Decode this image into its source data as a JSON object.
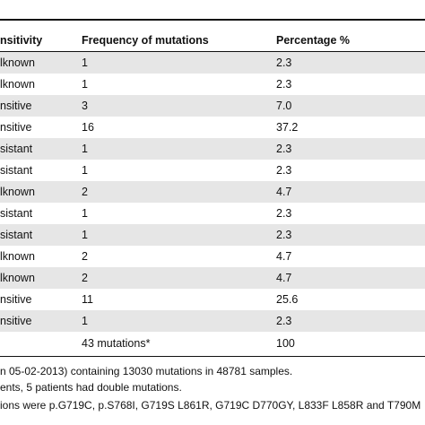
{
  "table": {
    "headers": {
      "sensitivity": "nsitivity",
      "frequency": "Frequency of mutations",
      "percentage": "Percentage %"
    },
    "rows": [
      {
        "sensitivity": "lknown",
        "frequency": "1",
        "percentage": "2.3"
      },
      {
        "sensitivity": "lknown",
        "frequency": "1",
        "percentage": "2.3"
      },
      {
        "sensitivity": "nsitive",
        "frequency": "3",
        "percentage": "7.0"
      },
      {
        "sensitivity": "nsitive",
        "frequency": "16",
        "percentage": "37.2"
      },
      {
        "sensitivity": "sistant",
        "frequency": "1",
        "percentage": "2.3"
      },
      {
        "sensitivity": "sistant",
        "frequency": "1",
        "percentage": "2.3"
      },
      {
        "sensitivity": "lknown",
        "frequency": "2",
        "percentage": "4.7"
      },
      {
        "sensitivity": "sistant",
        "frequency": "1",
        "percentage": "2.3"
      },
      {
        "sensitivity": "sistant",
        "frequency": "1",
        "percentage": "2.3"
      },
      {
        "sensitivity": "lknown",
        "frequency": "2",
        "percentage": "4.7"
      },
      {
        "sensitivity": "lknown",
        "frequency": "2",
        "percentage": "4.7"
      },
      {
        "sensitivity": "nsitive",
        "frequency": "11",
        "percentage": "25.6"
      },
      {
        "sensitivity": "nsitive",
        "frequency": "1",
        "percentage": "2.3"
      },
      {
        "sensitivity": "",
        "frequency": "43 mutations*",
        "percentage": "100"
      }
    ]
  },
  "footnotes": [
    "n 05-02-2013) containing 13030 mutations in 48781 samples.",
    "ents, 5 patients had double mutations.",
    "ions were p.G719C, p.S768I, G719S L861R, G719C D770GY, L833F L858R and T790M"
  ]
}
